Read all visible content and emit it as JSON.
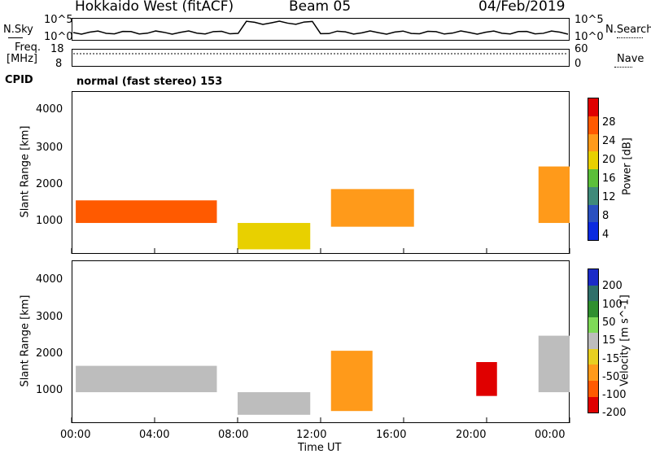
{
  "header": {
    "radar": "Hokkaido West (fitACF)",
    "beam": "Beam 05",
    "date": "04/Feb/2019"
  },
  "noise_panel": {
    "left_label": "N.Sky",
    "left_ticks": [
      "10^5",
      "10^0"
    ],
    "right_label": "N.Search",
    "right_ticks": [
      "10^5",
      "10^0"
    ]
  },
  "freq_panel": {
    "left_label_1": "Freq.",
    "left_label_2": "[MHz]",
    "left_ticks": [
      "18",
      "8"
    ],
    "right_label": "Nave",
    "right_ticks": [
      "60",
      "0"
    ]
  },
  "cpid": {
    "label": "CPID",
    "value": "normal (fast stereo) 153"
  },
  "x_axis": {
    "label": "Time UT",
    "ticks": [
      "00:00",
      "04:00",
      "08:00",
      "12:00",
      "16:00",
      "20:00",
      "00:00"
    ]
  },
  "colors": {
    "power_scale": [
      "#0a2ae0",
      "#2a50c0",
      "#3f8a7a",
      "#5bbf3a",
      "#e8d000",
      "#ff9a1a",
      "#ff5a00",
      "#e00000"
    ],
    "velocity_scale": [
      "#1b2bc8",
      "#2f6f6a",
      "#2f8f2f",
      "#7ed957",
      "#bdbdbd",
      "#e8cf21",
      "#ff9a1a",
      "#ff5a00",
      "#e00000"
    ]
  },
  "chart_data": [
    {
      "type": "heatmap",
      "title": "",
      "xlabel": "Time UT",
      "ylabel": "Slant Range [km]",
      "x_range": [
        "00:00",
        "00:00"
      ],
      "y_range_km": [
        180,
        4500
      ],
      "y_ticks": [
        "1000",
        "2000",
        "3000",
        "4000"
      ],
      "colorbar": {
        "label": "Power [dB]",
        "ticks": [
          "4",
          "8",
          "12",
          "16",
          "20",
          "24",
          "28"
        ]
      },
      "features": [
        {
          "time_start_h": 0.2,
          "time_end_h": 7.0,
          "range_km": [
            1000,
            1600
          ],
          "power_db": 24
        },
        {
          "time_start_h": 8.0,
          "time_end_h": 11.5,
          "range_km": [
            300,
            1000
          ],
          "power_db": 16
        },
        {
          "time_start_h": 12.5,
          "time_end_h": 16.5,
          "range_km": [
            900,
            1900
          ],
          "power_db": 20
        },
        {
          "time_start_h": 22.5,
          "time_end_h": 24.0,
          "range_km": [
            1000,
            2500
          ],
          "power_db": 22
        }
      ]
    },
    {
      "type": "heatmap",
      "title": "",
      "xlabel": "Time UT",
      "ylabel": "Slant Range [km]",
      "x_range": [
        "00:00",
        "00:00"
      ],
      "y_range_km": [
        180,
        4500
      ],
      "y_ticks": [
        "1000",
        "2000",
        "3000",
        "4000"
      ],
      "colorbar": {
        "label": "Velocity [m s^-1]",
        "ticks": [
          "200",
          "100",
          "50",
          "15",
          "-15",
          "-50",
          "-100",
          "-200"
        ]
      },
      "features": [
        {
          "time_start_h": 0.2,
          "time_end_h": 7.0,
          "range_km": [
            1000,
            1700
          ],
          "velocity_ms": 0
        },
        {
          "time_start_h": 8.0,
          "time_end_h": 11.5,
          "range_km": [
            400,
            1000
          ],
          "velocity_ms": 0
        },
        {
          "time_start_h": 12.5,
          "time_end_h": 14.5,
          "range_km": [
            500,
            2100
          ],
          "velocity_ms": -60
        },
        {
          "time_start_h": 19.5,
          "time_end_h": 20.5,
          "range_km": [
            900,
            1800
          ],
          "velocity_ms": -180
        },
        {
          "time_start_h": 22.5,
          "time_end_h": 24.0,
          "range_km": [
            1000,
            2500
          ],
          "velocity_ms": 0
        }
      ]
    }
  ]
}
